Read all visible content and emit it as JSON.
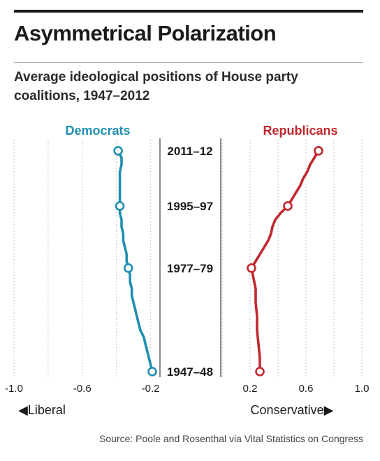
{
  "title": "Asymmetrical Polarization",
  "subtitle": "Average ideological positions of House party coalitions, 1947–2012",
  "source": "Source: Poole and Rosenthal via Vital Statistics on Congress",
  "colors": {
    "democrats": "#1e8fb0",
    "republicans": "#c1272d",
    "text": "#1a1a1a",
    "grid": "#c8c8c8"
  },
  "chart_data": {
    "type": "line",
    "y_axis": "year (time runs upward)",
    "y_range": [
      1947,
      2012
    ],
    "middle_axis_labels": [
      {
        "label": "2011–12",
        "year": 2011
      },
      {
        "label": "1995–97",
        "year": 1995
      },
      {
        "label": "1977–79",
        "year": 1977
      },
      {
        "label": "1947–48",
        "year": 1947
      }
    ],
    "panels": [
      {
        "name": "Democrats",
        "color": "#1e8fb0",
        "xlim": [
          -1.0,
          -0.1
        ],
        "ticks": [
          -1.0,
          -0.6,
          -0.2
        ],
        "tick_labels": [
          "-1.0",
          "-0.6",
          "-0.2"
        ],
        "direction_label": "◀Liberal",
        "series": [
          {
            "year": 1947,
            "value": -0.19
          },
          {
            "year": 1949,
            "value": -0.2
          },
          {
            "year": 1951,
            "value": -0.21
          },
          {
            "year": 1953,
            "value": -0.22
          },
          {
            "year": 1955,
            "value": -0.23
          },
          {
            "year": 1957,
            "value": -0.24
          },
          {
            "year": 1959,
            "value": -0.26
          },
          {
            "year": 1961,
            "value": -0.27
          },
          {
            "year": 1963,
            "value": -0.28
          },
          {
            "year": 1965,
            "value": -0.29
          },
          {
            "year": 1967,
            "value": -0.3
          },
          {
            "year": 1969,
            "value": -0.31
          },
          {
            "year": 1971,
            "value": -0.31
          },
          {
            "year": 1973,
            "value": -0.32
          },
          {
            "year": 1975,
            "value": -0.32
          },
          {
            "year": 1977,
            "value": -0.33
          },
          {
            "year": 1979,
            "value": -0.34
          },
          {
            "year": 1981,
            "value": -0.34
          },
          {
            "year": 1983,
            "value": -0.35
          },
          {
            "year": 1985,
            "value": -0.36
          },
          {
            "year": 1987,
            "value": -0.36
          },
          {
            "year": 1989,
            "value": -0.37
          },
          {
            "year": 1991,
            "value": -0.37
          },
          {
            "year": 1993,
            "value": -0.38
          },
          {
            "year": 1995,
            "value": -0.38
          },
          {
            "year": 1997,
            "value": -0.38
          },
          {
            "year": 1999,
            "value": -0.38
          },
          {
            "year": 2001,
            "value": -0.38
          },
          {
            "year": 2003,
            "value": -0.38
          },
          {
            "year": 2005,
            "value": -0.38
          },
          {
            "year": 2007,
            "value": -0.37
          },
          {
            "year": 2009,
            "value": -0.37
          },
          {
            "year": 2011,
            "value": -0.39
          }
        ],
        "markers": [
          1947,
          1977,
          1995,
          2011
        ]
      },
      {
        "name": "Republicans",
        "color": "#c1272d",
        "xlim": [
          0.0,
          1.1
        ],
        "ticks": [
          0.2,
          0.6,
          1.0
        ],
        "tick_labels": [
          "0.2",
          "0.6",
          "1.0"
        ],
        "direction_label": "Conservative▶",
        "series": [
          {
            "year": 1947,
            "value": 0.27
          },
          {
            "year": 1951,
            "value": 0.27
          },
          {
            "year": 1955,
            "value": 0.26
          },
          {
            "year": 1959,
            "value": 0.25
          },
          {
            "year": 1963,
            "value": 0.25
          },
          {
            "year": 1967,
            "value": 0.24
          },
          {
            "year": 1971,
            "value": 0.24
          },
          {
            "year": 1975,
            "value": 0.22
          },
          {
            "year": 1977,
            "value": 0.21
          },
          {
            "year": 1979,
            "value": 0.24
          },
          {
            "year": 1981,
            "value": 0.27
          },
          {
            "year": 1983,
            "value": 0.3
          },
          {
            "year": 1985,
            "value": 0.33
          },
          {
            "year": 1987,
            "value": 0.35
          },
          {
            "year": 1989,
            "value": 0.36
          },
          {
            "year": 1991,
            "value": 0.38
          },
          {
            "year": 1993,
            "value": 0.42
          },
          {
            "year": 1995,
            "value": 0.47
          },
          {
            "year": 1997,
            "value": 0.5
          },
          {
            "year": 1999,
            "value": 0.53
          },
          {
            "year": 2001,
            "value": 0.56
          },
          {
            "year": 2003,
            "value": 0.58
          },
          {
            "year": 2005,
            "value": 0.61
          },
          {
            "year": 2007,
            "value": 0.63
          },
          {
            "year": 2009,
            "value": 0.66
          },
          {
            "year": 2011,
            "value": 0.69
          }
        ],
        "markers": [
          1947,
          1977,
          1995,
          2011
        ]
      }
    ],
    "grid": true
  }
}
